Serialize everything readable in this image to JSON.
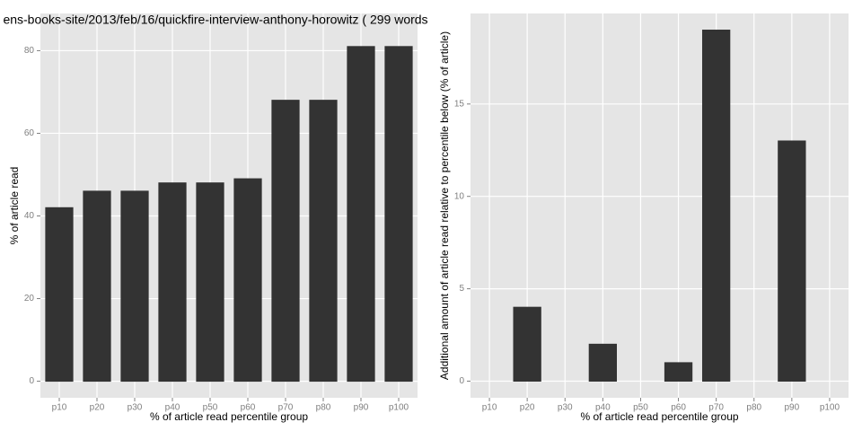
{
  "chart_data": [
    {
      "type": "bar",
      "title": "ens-books-site/2013/feb/16/quickfire-interview-anthony-horowitz ( 299 words",
      "x_label": "% of article read percentile group",
      "y_label": "% of article read",
      "categories": [
        "p10",
        "p20",
        "p30",
        "p40",
        "p50",
        "p60",
        "p70",
        "p80",
        "p90",
        "p100"
      ],
      "values": [
        42,
        46,
        46,
        48,
        48,
        49,
        68,
        68,
        81,
        81
      ],
      "color": "#333333",
      "ylim": [
        -4,
        89
      ],
      "yticks": [
        0,
        20,
        40,
        60,
        80
      ],
      "grid": true
    },
    {
      "type": "bar",
      "x_label": "% of article read percentile group",
      "y_label": "Additional amount of article read relative to percentile below (% of article)",
      "categories": [
        "p10",
        "p20",
        "p30",
        "p40",
        "p50",
        "p60",
        "p70",
        "p80",
        "p90",
        "p100"
      ],
      "values": [
        0,
        4,
        0,
        2,
        0,
        1,
        19,
        0,
        13,
        0
      ],
      "color": "#333333",
      "ylim": [
        -0.9,
        19.9
      ],
      "yticks": [
        0,
        5,
        10,
        15
      ],
      "grid": true
    }
  ]
}
